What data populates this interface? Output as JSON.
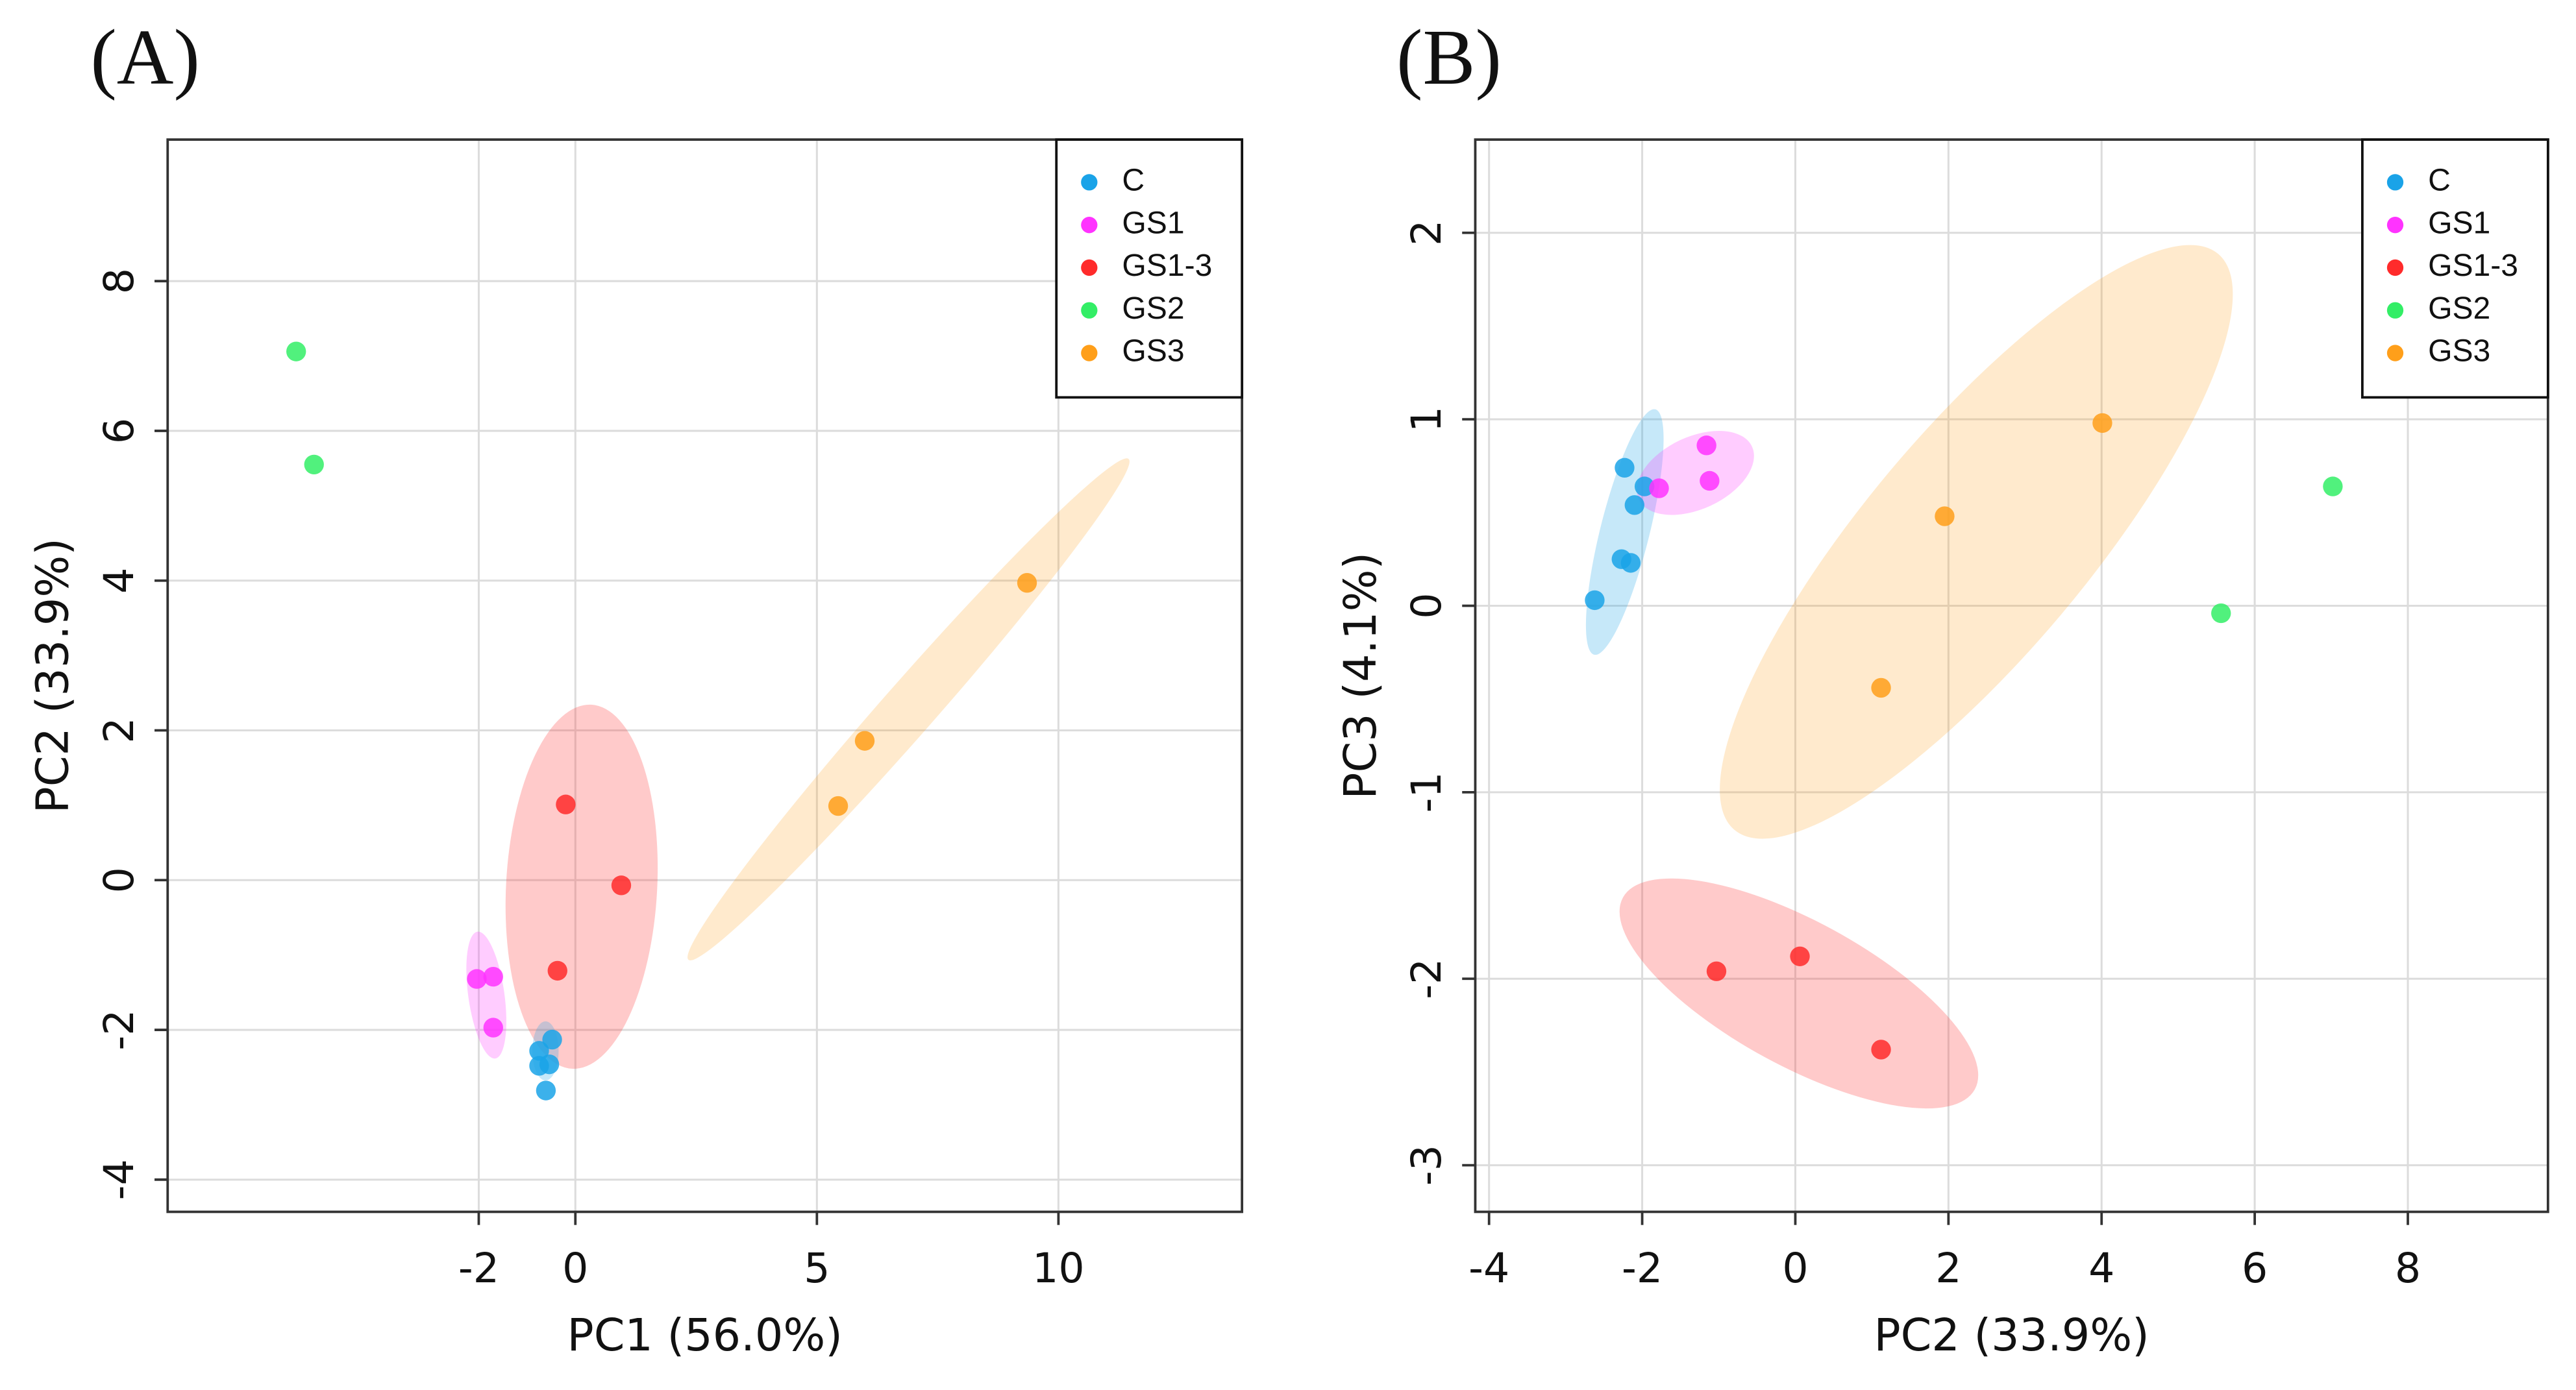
{
  "chart_data": [
    {
      "type": "scatter",
      "panel_label": "(A)",
      "x_label": "PC1 (56.0%)",
      "y_label": "PC2 (33.9%)",
      "xlim": [
        -8.44,
        13.8
      ],
      "ylim": [
        -4.43,
        9.89
      ],
      "xticks": [
        -2,
        0,
        5,
        10
      ],
      "yticks": [
        -4,
        -2,
        0,
        2,
        4,
        6,
        8
      ],
      "grid": true,
      "legend": "top-right",
      "series": [
        {
          "name": "C",
          "color": "#1aa3e8",
          "x": [
            -0.48,
            -0.75,
            -0.54,
            -0.75,
            -0.61
          ],
          "values": [
            -2.13,
            -2.28,
            -2.46,
            -2.48,
            -2.81
          ]
        },
        {
          "name": "GS1",
          "color": "#ff33ff",
          "x": [
            -2.04,
            -1.7,
            -1.7
          ],
          "values": [
            -1.32,
            -1.29,
            -1.97
          ]
        },
        {
          "name": "GS1-3",
          "color": "#ff2b2b",
          "x": [
            -0.2,
            0.95,
            -0.37
          ],
          "values": [
            1.01,
            -0.07,
            -1.21
          ]
        },
        {
          "name": "GS2",
          "color": "#33ee66",
          "x": [
            -5.78,
            -5.41
          ],
          "values": [
            7.06,
            5.55
          ]
        },
        {
          "name": "GS3",
          "color": "#ff9f1a",
          "x": [
            9.35,
            5.99,
            5.44
          ],
          "values": [
            3.97,
            1.86,
            0.99
          ]
        }
      ]
    },
    {
      "type": "scatter",
      "panel_label": "(B)",
      "x_label": "PC2 (33.9%)",
      "y_label": "PC3 (4.1%)",
      "xlim": [
        -4.18,
        9.83
      ],
      "ylim": [
        -3.25,
        2.5
      ],
      "xticks": [
        -4,
        -2,
        0,
        2,
        4,
        6,
        8
      ],
      "yticks": [
        -3,
        -2,
        -1,
        0,
        1,
        2
      ],
      "grid": true,
      "legend": "top-right",
      "series": [
        {
          "name": "C",
          "color": "#1aa3e8",
          "x": [
            -2.62,
            -2.23,
            -2.1,
            -2.27,
            -2.15,
            -1.97
          ],
          "values": [
            0.03,
            0.74,
            0.54,
            0.25,
            0.23,
            0.64
          ]
        },
        {
          "name": "GS1",
          "color": "#ff33ff",
          "x": [
            -1.16,
            -1.12,
            -1.78
          ],
          "values": [
            0.86,
            0.67,
            0.63
          ]
        },
        {
          "name": "GS1-3",
          "color": "#ff2b2b",
          "x": [
            -1.03,
            0.06,
            1.12
          ],
          "values": [
            -1.96,
            -1.88,
            -2.38
          ]
        },
        {
          "name": "GS2",
          "color": "#33ee66",
          "x": [
            7.02,
            5.56
          ],
          "values": [
            0.64,
            -0.04
          ]
        },
        {
          "name": "GS3",
          "color": "#ff9f1a",
          "x": [
            4.01,
            1.95,
            1.12
          ],
          "values": [
            0.98,
            0.48,
            -0.44
          ]
        }
      ]
    }
  ]
}
